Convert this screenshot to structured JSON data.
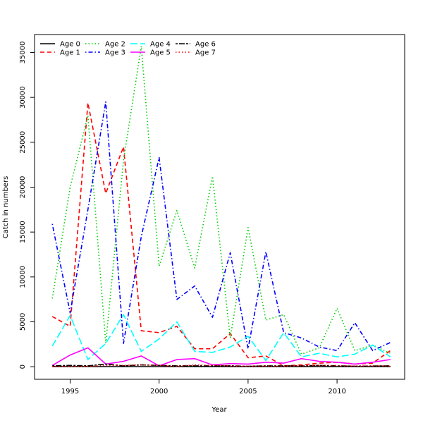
{
  "chart_data": {
    "type": "line",
    "title": "",
    "xlabel": "Year",
    "ylabel": "Catch in numbers",
    "xlim": [
      1993.0,
      2013.8
    ],
    "ylim": [
      -1400,
      37000
    ],
    "x_ticks": [
      1995,
      2000,
      2005,
      2010
    ],
    "y_ticks": [
      0,
      5000,
      10000,
      15000,
      20000,
      25000,
      30000,
      35000
    ],
    "grid": false,
    "legend": "top-left",
    "x": [
      1994,
      1995,
      1996,
      1997,
      1998,
      1999,
      2000,
      2001,
      2002,
      2003,
      2004,
      2005,
      2006,
      2007,
      2008,
      2009,
      2010,
      2011,
      2012,
      2013
    ],
    "series": [
      {
        "name": "Age 0",
        "color": "#000000",
        "dash": "solid",
        "values": [
          10,
          10,
          10,
          10,
          10,
          10,
          10,
          10,
          10,
          10,
          10,
          10,
          10,
          10,
          10,
          10,
          10,
          10,
          10,
          10
        ]
      },
      {
        "name": "Age 1",
        "color": "#ff0000",
        "dash": "dashed",
        "values": [
          5600,
          4500,
          29400,
          19300,
          24500,
          4000,
          3800,
          4500,
          2000,
          2000,
          3700,
          1000,
          1200,
          100,
          200,
          400,
          500,
          300,
          400,
          1800
        ]
      },
      {
        "name": "Age 2",
        "color": "#00cd00",
        "dash": "dotted",
        "values": [
          7600,
          20000,
          28000,
          2600,
          23000,
          35700,
          11200,
          17400,
          11000,
          21200,
          3200,
          15500,
          5200,
          5800,
          1400,
          2100,
          6500,
          1800,
          2400,
          1500
        ]
      },
      {
        "name": "Age 3",
        "color": "#0000ff",
        "dash": "dotdash",
        "values": [
          15900,
          6000,
          17500,
          29500,
          2600,
          14500,
          23300,
          7500,
          9000,
          5500,
          12700,
          2000,
          12800,
          3800,
          3200,
          2200,
          1800,
          4900,
          1800,
          2700
        ]
      },
      {
        "name": "Age 4",
        "color": "#00ffff",
        "dash": "longdash",
        "values": [
          2300,
          5700,
          800,
          2600,
          5800,
          1700,
          3100,
          5000,
          1700,
          1600,
          2200,
          3400,
          700,
          3800,
          1100,
          1500,
          1100,
          1400,
          2400,
          1100
        ]
      },
      {
        "name": "Age 5",
        "color": "#ff00ff",
        "dash": "solid",
        "values": [
          150,
          1300,
          2100,
          300,
          600,
          1200,
          100,
          800,
          900,
          200,
          350,
          300,
          500,
          400,
          900,
          600,
          500,
          300,
          500,
          800
        ]
      },
      {
        "name": "Age 6",
        "color": "#000000",
        "dash": "twodash",
        "values": [
          100,
          150,
          100,
          300,
          100,
          200,
          150,
          100,
          100,
          100,
          100,
          50,
          100,
          100,
          100,
          150,
          100,
          50,
          80,
          100
        ]
      },
      {
        "name": "Age 7",
        "color": "#ff0000",
        "dash": "dotted",
        "values": [
          30,
          40,
          40,
          150,
          150,
          200,
          150,
          50,
          200,
          150,
          100,
          50,
          80,
          60,
          100,
          150,
          120,
          80,
          100,
          80
        ]
      }
    ]
  }
}
